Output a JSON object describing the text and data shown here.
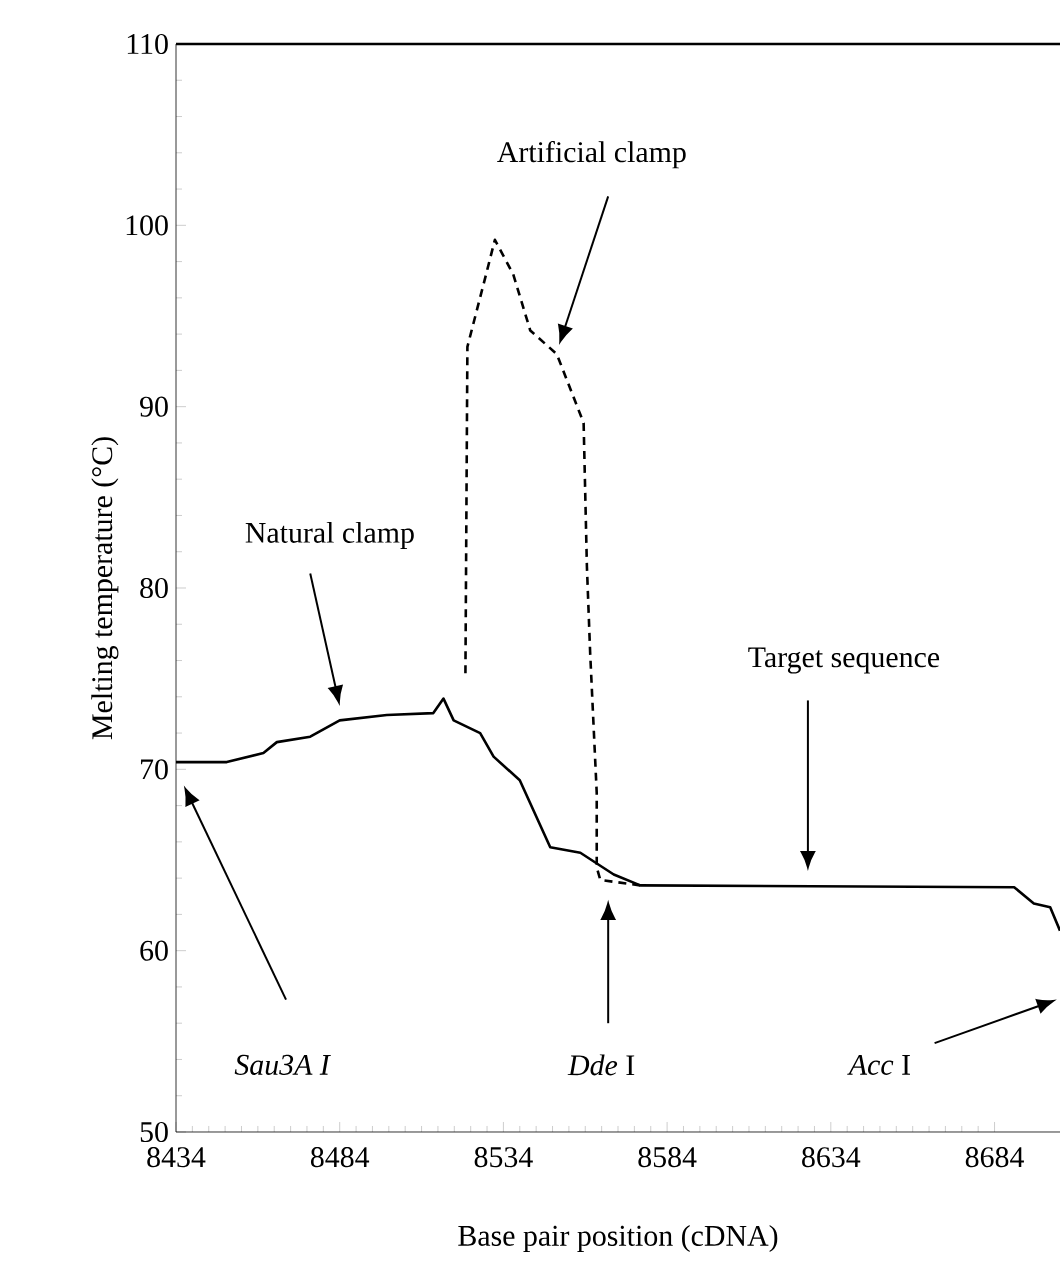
{
  "chart_data": {
    "type": "line",
    "xlabel": "Base pair position (cDNA)",
    "ylabel": "Melting temperature (°C)",
    "xlim": [
      8434,
      8704
    ],
    "xticks": [
      8434,
      8484,
      8534,
      8584,
      8634,
      8684
    ],
    "ylim": [
      50,
      110
    ],
    "yticks": [
      50,
      60,
      70,
      80,
      90,
      100,
      110
    ],
    "grid": false,
    "series": [
      {
        "color": "#000000",
        "line_style": "solid",
        "x": [
          8434,
          8449.5,
          8460.7,
          8464.8,
          8475,
          8484,
          8498.4,
          8512.6,
          8515.7,
          8518.8,
          8526.9,
          8531,
          8539,
          8548.3,
          8557.5,
          8567.7,
          8575.8,
          8690,
          8696,
          8701,
          8704
        ],
        "values": [
          70.4,
          70.4,
          70.9,
          71.5,
          71.8,
          72.7,
          73.0,
          73.1,
          73.9,
          72.7,
          72.0,
          70.7,
          69.4,
          65.7,
          65.4,
          64.2,
          63.6,
          63.5,
          62.6,
          62.4,
          61.1
        ]
      },
      {
        "color": "#000000",
        "line_style": "dashed",
        "x": [
          8522.4,
          8523,
          8528,
          8531.4,
          8537,
          8542.2,
          8550.3,
          8558.5,
          8559.5,
          8560.5,
          8562.5,
          8562.5,
          8563.6,
          8575.8
        ],
        "values": [
          75.3,
          93.3,
          96.8,
          99.2,
          97.3,
          94.2,
          92.9,
          89.1,
          81.2,
          76.4,
          68.7,
          64.6,
          63.9,
          63.6
        ]
      }
    ],
    "annotations": [
      "Artificial clamp",
      "Natural clamp",
      "Target sequence",
      "Sau3A I",
      "*Dde* I",
      "*Acc* I"
    ]
  }
}
